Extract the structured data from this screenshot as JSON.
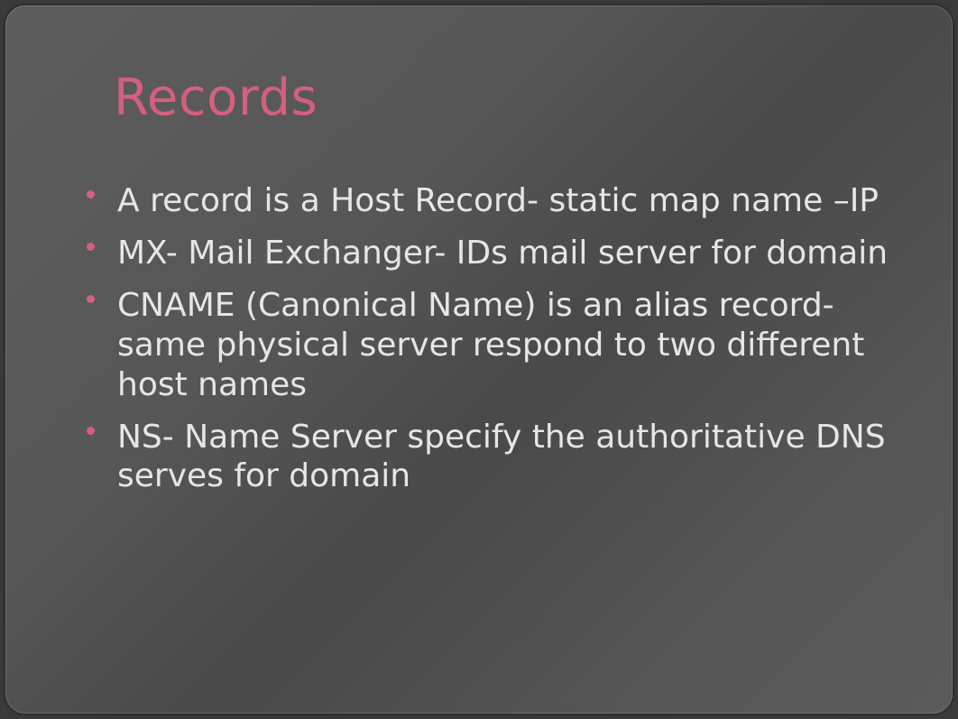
{
  "slide": {
    "title": "Records",
    "title_color": "#d5607d",
    "text_color": "#e6e6e6",
    "bullet_color": "#d5607d",
    "background_gradient": {
      "direction_deg": 135,
      "stops": [
        "#5d5d5d",
        "#565656",
        "#494949",
        "#565656",
        "#5a5a5a"
      ]
    },
    "title_fontsize": 56,
    "body_fontsize": 36,
    "border_radius": 22,
    "bullets": [
      "A record is a Host Record- static map name –IP",
      "MX- Mail Exchanger- IDs mail server for domain",
      "CNAME (Canonical Name) is an alias record- same physical server respond to two different host names",
      "NS- Name Server specify the authoritative DNS serves for domain"
    ]
  }
}
